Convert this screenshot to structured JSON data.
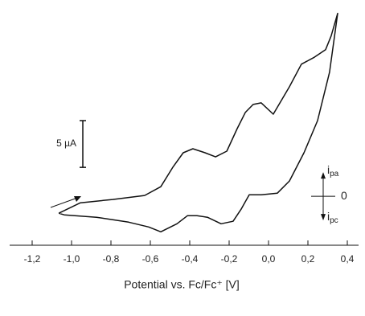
{
  "chart_data": {
    "type": "line",
    "xlabel": "Potential vs. Fc/Fc⁺ [V]",
    "x": [
      -1.065,
      -0.955,
      -0.792,
      -0.629,
      -0.547,
      -0.486,
      -0.433,
      -0.384,
      -0.322,
      -0.269,
      -0.212,
      -0.159,
      -0.118,
      -0.078,
      -0.037,
      0.024,
      0.106,
      0.167,
      0.229,
      0.29,
      0.318,
      0.351,
      0.31,
      0.249,
      0.18,
      0.106,
      0.045,
      -0.037,
      -0.098,
      -0.139,
      -0.18,
      -0.241,
      -0.31,
      -0.363,
      -0.412,
      -0.465,
      -0.547,
      -0.608,
      -0.71,
      -0.873,
      -1.037,
      -1.065
    ],
    "values": [
      -1.81,
      -0.69,
      -0.34,
      0.09,
      1.03,
      3.1,
      4.66,
      5.09,
      4.66,
      4.22,
      4.83,
      7.24,
      8.97,
      9.83,
      10.0,
      8.79,
      11.72,
      14.14,
      14.83,
      15.69,
      17.16,
      19.57,
      13.28,
      8.1,
      4.66,
      1.64,
      0.34,
      0.17,
      0.17,
      -1.38,
      -2.67,
      -2.93,
      -2.24,
      -2.07,
      -2.07,
      -2.93,
      -3.79,
      -3.28,
      -2.76,
      -2.24,
      -1.98,
      -1.81
    ],
    "color": "#111111",
    "xlim": [
      -1.2,
      0.4
    ],
    "xticks": [
      {
        "value": -1.2,
        "label": "-1,2"
      },
      {
        "value": -1.0,
        "label": "-1,0"
      },
      {
        "value": -0.8,
        "label": "-0,8"
      },
      {
        "value": -0.6,
        "label": "-0,6"
      },
      {
        "value": -0.4,
        "label": "-0,4"
      },
      {
        "value": -0.2,
        "label": "-0,2"
      },
      {
        "value": 0.0,
        "label": "0,0"
      },
      {
        "value": 0.2,
        "label": "0,2"
      },
      {
        "value": 0.4,
        "label": "0,4"
      }
    ],
    "ylim": [
      -4.8,
      21
    ],
    "yticks": [
      0
    ],
    "scale_bar": {
      "value": 5,
      "label": "5 µA"
    },
    "anodic_label": {
      "main": "i",
      "sub": "pa"
    },
    "cathodic_label": {
      "main": "i",
      "sub": "pc"
    }
  }
}
